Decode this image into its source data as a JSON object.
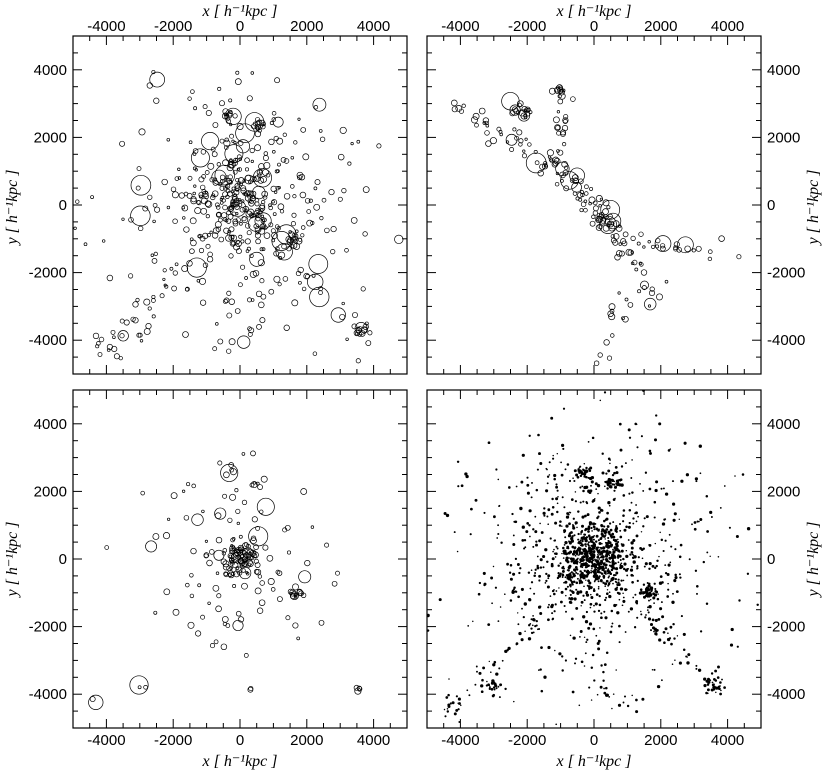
{
  "figure": {
    "x_axis_label": "x [ h⁻¹kpc ]",
    "y_axis_label": "y [ h⁻¹kpc ]"
  },
  "chart_data": [
    {
      "type": "scatter",
      "panel": "top-left",
      "xlim": [
        -5000,
        5000
      ],
      "ylim": [
        -5000,
        5000
      ],
      "x_ticks": [
        -4000,
        -2000,
        0,
        2000,
        4000
      ],
      "y_ticks": [
        -4000,
        -2000,
        0,
        2000,
        4000
      ],
      "tick_labels_x": "top",
      "tick_labels_y": "left",
      "marker": "open-circle",
      "clusters": [
        {
          "x": 0,
          "y": 0,
          "spread": 700,
          "count": 170
        },
        {
          "x": 0,
          "y": 0,
          "spread": 1900,
          "count": 260
        },
        {
          "x": -300,
          "y": 2600,
          "spread": 120,
          "count": 12
        },
        {
          "x": 550,
          "y": 2300,
          "spread": 150,
          "count": 14
        },
        {
          "x": 1650,
          "y": -1000,
          "spread": 130,
          "count": 16
        },
        {
          "x": 3600,
          "y": -3800,
          "spread": 130,
          "count": 12
        },
        {
          "x": -4200,
          "y": -4100,
          "spread": 160,
          "count": 6
        },
        {
          "x": -3000,
          "y": -3800,
          "spread": 160,
          "count": 6
        },
        {
          "x": 300,
          "y": -3800,
          "spread": 140,
          "count": 4
        }
      ],
      "filaments": [
        {
          "from": [
            0,
            0
          ],
          "to": [
            -4000,
            -4200
          ],
          "count": 30
        },
        {
          "from": [
            0,
            0
          ],
          "to": [
            3600,
            -3800
          ],
          "count": 30
        },
        {
          "from": [
            0,
            0
          ],
          "to": [
            -300,
            2600
          ],
          "count": 14
        }
      ]
    },
    {
      "type": "scatter",
      "panel": "top-right",
      "xlim": [
        -5000,
        5000
      ],
      "ylim": [
        -5000,
        5000
      ],
      "x_ticks": [
        -4000,
        -2000,
        0,
        2000,
        4000
      ],
      "y_ticks": [
        -4000,
        -2000,
        0,
        2000,
        4000
      ],
      "tick_labels_x": "top",
      "tick_labels_y": "right",
      "marker": "open-circle",
      "clusters": [
        {
          "x": -2200,
          "y": 2800,
          "spread": 180,
          "count": 20
        },
        {
          "x": -1000,
          "y": 3400,
          "spread": 130,
          "count": 10
        },
        {
          "x": 200,
          "y": -500,
          "spread": 300,
          "count": 10
        }
      ],
      "filaments": [
        {
          "from": [
            -4200,
            3000
          ],
          "to": [
            -1000,
            1000
          ],
          "count": 45
        },
        {
          "from": [
            -1000,
            3600
          ],
          "to": [
            -1000,
            1000
          ],
          "count": 25
        },
        {
          "from": [
            -1000,
            1000
          ],
          "to": [
            300,
            -300
          ],
          "count": 35
        },
        {
          "from": [
            300,
            -300
          ],
          "to": [
            1800,
            -2800
          ],
          "count": 35
        },
        {
          "from": [
            300,
            -300
          ],
          "to": [
            1400,
            -1500
          ],
          "count": 15
        },
        {
          "from": [
            1400,
            -1200
          ],
          "to": [
            4800,
            -1300
          ],
          "count": 20
        },
        {
          "from": [
            900,
            -2400
          ],
          "to": [
            200,
            -4800
          ],
          "count": 14
        }
      ]
    },
    {
      "type": "scatter",
      "panel": "bottom-left",
      "xlim": [
        -5000,
        5000
      ],
      "ylim": [
        -5000,
        5000
      ],
      "x_ticks": [
        -4000,
        -2000,
        0,
        2000,
        4000
      ],
      "y_ticks": [
        -4000,
        -2000,
        0,
        2000,
        4000
      ],
      "tick_labels_x": "bottom",
      "tick_labels_y": "left",
      "marker": "open-circle",
      "clusters": [
        {
          "x": 0,
          "y": 0,
          "spread": 250,
          "count": 80
        },
        {
          "x": 0,
          "y": 0,
          "spread": 1300,
          "count": 110
        },
        {
          "x": 1650,
          "y": -1000,
          "spread": 100,
          "count": 12
        },
        {
          "x": -300,
          "y": 2550,
          "spread": 90,
          "count": 5
        },
        {
          "x": 550,
          "y": 2300,
          "spread": 90,
          "count": 5
        },
        {
          "x": 3600,
          "y": -3800,
          "spread": 80,
          "count": 4
        },
        {
          "x": -3000,
          "y": -3750,
          "spread": 80,
          "count": 3
        },
        {
          "x": 250,
          "y": -3800,
          "spread": 60,
          "count": 2
        },
        {
          "x": -4300,
          "y": -4200,
          "spread": 80,
          "count": 2
        }
      ],
      "filaments": []
    },
    {
      "type": "scatter",
      "panel": "bottom-right",
      "xlim": [
        -5000,
        5000
      ],
      "ylim": [
        -5000,
        5000
      ],
      "x_ticks": [
        -4000,
        -2000,
        0,
        2000,
        4000
      ],
      "y_ticks": [
        -4000,
        -2000,
        0,
        2000,
        4000
      ],
      "tick_labels_x": "bottom",
      "tick_labels_y": "right",
      "marker": "point",
      "clusters": [
        {
          "x": 0,
          "y": 0,
          "spread": 500,
          "count": 520
        },
        {
          "x": 0,
          "y": 0,
          "spread": 1800,
          "count": 680
        },
        {
          "x": -300,
          "y": 2600,
          "spread": 120,
          "count": 30
        },
        {
          "x": 550,
          "y": 2300,
          "spread": 130,
          "count": 30
        },
        {
          "x": 1650,
          "y": -1000,
          "spread": 140,
          "count": 40
        },
        {
          "x": 3600,
          "y": -3800,
          "spread": 150,
          "count": 30
        },
        {
          "x": -3000,
          "y": -3800,
          "spread": 150,
          "count": 22
        },
        {
          "x": -4200,
          "y": -4300,
          "spread": 200,
          "count": 18
        },
        {
          "x": 250,
          "y": -3800,
          "spread": 130,
          "count": 10
        }
      ],
      "filaments": [
        {
          "from": [
            0,
            0
          ],
          "to": [
            -4000,
            -4200
          ],
          "count": 60
        },
        {
          "from": [
            0,
            0
          ],
          "to": [
            3600,
            -3800
          ],
          "count": 60
        },
        {
          "from": [
            0,
            0
          ],
          "to": [
            -300,
            2600
          ],
          "count": 30
        }
      ]
    }
  ]
}
